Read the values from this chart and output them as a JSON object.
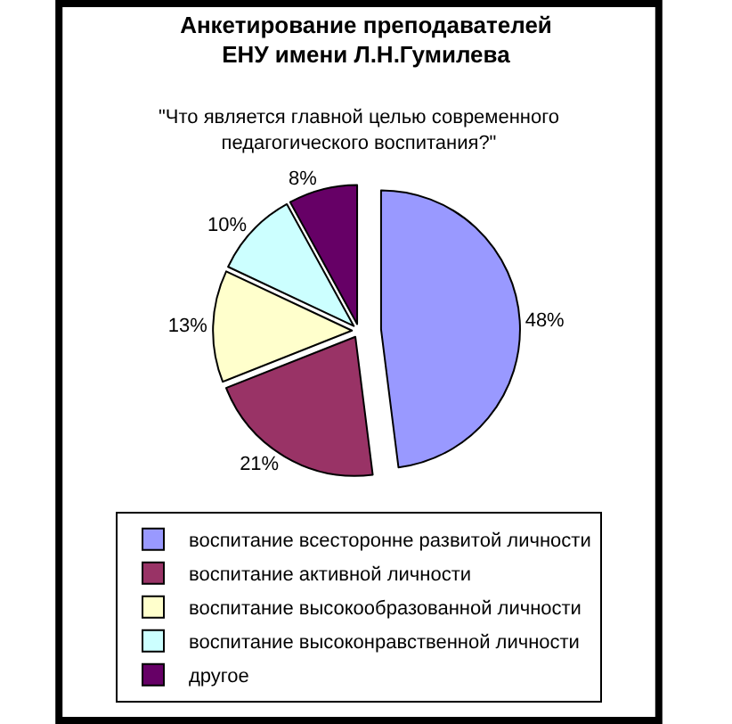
{
  "chart_data": {
    "type": "pie",
    "title": "Анкетирование преподавателей\nЕНУ имени Л.Н.Гумилева",
    "subtitle": "\"Что является главной целью современного\nпедагогического воспитания?\"",
    "categories": [
      "воспитание всесторонне развитой личности",
      "воспитание активной личности",
      "воспитание высокообразованной личности",
      "воспитание высоконравственной личности",
      "другое"
    ],
    "values": [
      48,
      21,
      13,
      10,
      8
    ],
    "value_labels": [
      "48%",
      "21%",
      "13%",
      "10%",
      "8%"
    ],
    "colors": [
      "#9999ff",
      "#993366",
      "#ffffcc",
      "#ccffff",
      "#660066"
    ],
    "legend": "bottom"
  }
}
